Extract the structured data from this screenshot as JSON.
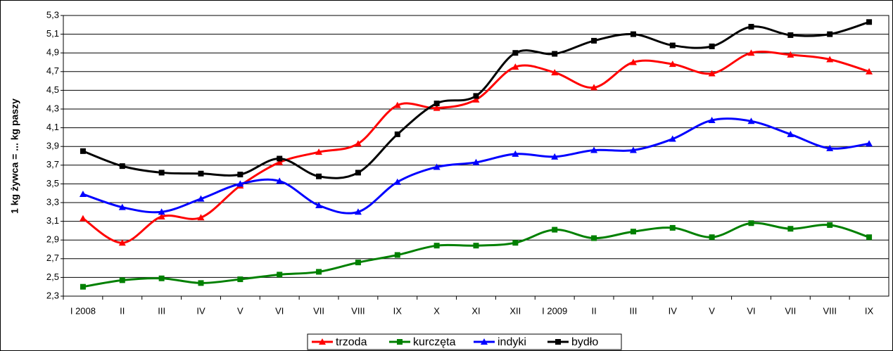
{
  "chart_data": {
    "type": "line",
    "y_label": "1 kg żywca = ... kg paszy",
    "categories": [
      "I 2008",
      "II",
      "III",
      "IV",
      "V",
      "VI",
      "VII",
      "VIII",
      "IX",
      "X",
      "XI",
      "XII",
      "I 2009",
      "II",
      "III",
      "IV",
      "V",
      "VI",
      "VII",
      "VIII",
      "IX"
    ],
    "series": [
      {
        "name": "trzoda",
        "color": "#ff0000",
        "marker": "triangle",
        "values": [
          3.13,
          2.87,
          3.15,
          3.14,
          3.48,
          3.73,
          3.84,
          3.93,
          4.34,
          4.31,
          4.4,
          4.75,
          4.69,
          4.53,
          4.8,
          4.78,
          4.68,
          4.9,
          4.88,
          4.83,
          4.7
        ]
      },
      {
        "name": "kurczęta",
        "color": "#008000",
        "marker": "square",
        "values": [
          2.4,
          2.47,
          2.49,
          2.44,
          2.48,
          2.53,
          2.56,
          2.66,
          2.74,
          2.84,
          2.84,
          2.87,
          3.01,
          2.92,
          2.99,
          3.03,
          2.93,
          3.08,
          3.02,
          3.06,
          2.93
        ]
      },
      {
        "name": "indyki",
        "color": "#0000ff",
        "marker": "triangle",
        "values": [
          3.39,
          3.25,
          3.2,
          3.34,
          3.5,
          3.53,
          3.27,
          3.2,
          3.52,
          3.68,
          3.73,
          3.82,
          3.79,
          3.86,
          3.86,
          3.98,
          4.18,
          4.17,
          4.03,
          3.88,
          3.93
        ]
      },
      {
        "name": "bydło",
        "color": "#000000",
        "marker": "square",
        "values": [
          3.85,
          3.69,
          3.62,
          3.61,
          3.6,
          3.77,
          3.58,
          3.62,
          4.03,
          4.36,
          4.44,
          4.9,
          4.89,
          5.03,
          5.1,
          4.98,
          4.97,
          5.18,
          5.09,
          5.1,
          5.23
        ]
      }
    ],
    "ylim": [
      2.3,
      5.3
    ],
    "yticks": [
      {
        "value": 2.3,
        "label": "2,3"
      },
      {
        "value": 2.5,
        "label": "2,5"
      },
      {
        "value": 2.7,
        "label": "2,7"
      },
      {
        "value": 2.9,
        "label": "2,9"
      },
      {
        "value": 3.1,
        "label": "3,1"
      },
      {
        "value": 3.3,
        "label": "3,3"
      },
      {
        "value": 3.5,
        "label": "3,5"
      },
      {
        "value": 3.7,
        "label": "3,7"
      },
      {
        "value": 3.9,
        "label": "3,9"
      },
      {
        "value": 4.1,
        "label": "4,1"
      },
      {
        "value": 4.3,
        "label": "4,3"
      },
      {
        "value": 4.5,
        "label": "4,5"
      },
      {
        "value": 4.7,
        "label": "4,7"
      },
      {
        "value": 4.9,
        "label": "4,9"
      },
      {
        "value": 5.1,
        "label": "5,1"
      },
      {
        "value": 5.3,
        "label": "5,3"
      }
    ],
    "grid": true,
    "smooth": true,
    "legend": "bottom"
  }
}
